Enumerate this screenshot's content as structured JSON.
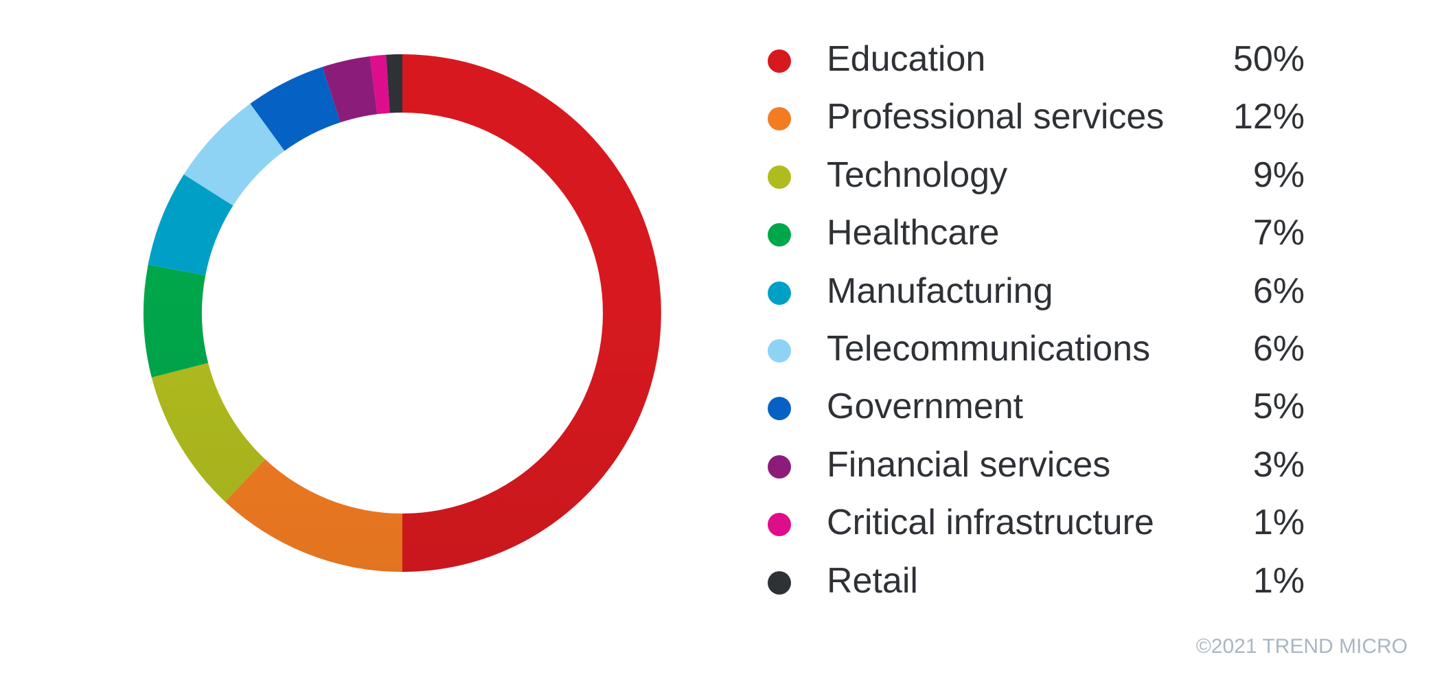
{
  "chart_data": {
    "type": "pie",
    "donut": true,
    "legend_position": "right",
    "slices": [
      {
        "label": "Education",
        "value": 50,
        "value_label": "50%",
        "color": "#d7191f"
      },
      {
        "label": "Professional services",
        "value": 12,
        "value_label": "12%",
        "color": "#f37c22"
      },
      {
        "label": "Technology",
        "value": 9,
        "value_label": "9%",
        "color": "#b0bc1e"
      },
      {
        "label": "Healthcare",
        "value": 7,
        "value_label": "7%",
        "color": "#00a64a"
      },
      {
        "label": "Manufacturing",
        "value": 6,
        "value_label": "6%",
        "color": "#00a0c6"
      },
      {
        "label": "Telecommunications",
        "value": 6,
        "value_label": "6%",
        "color": "#8fd3f4"
      },
      {
        "label": "Government",
        "value": 5,
        "value_label": "5%",
        "color": "#0562c4"
      },
      {
        "label": "Financial services",
        "value": 3,
        "value_label": "3%",
        "color": "#8c1c7a"
      },
      {
        "label": "Critical infrastructure",
        "value": 1,
        "value_label": "1%",
        "color": "#de0d8c"
      },
      {
        "label": "Retail",
        "value": 1,
        "value_label": "1%",
        "color": "#2e3136"
      }
    ]
  },
  "copyright": "©2021 TREND MICRO"
}
